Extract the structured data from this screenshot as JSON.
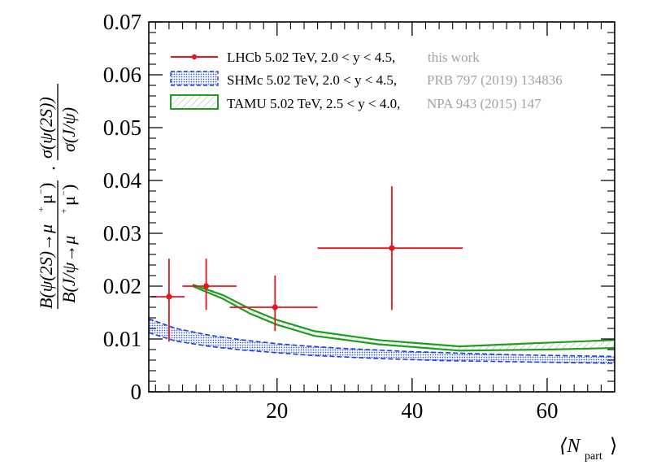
{
  "chart_data": {
    "type": "scatter",
    "title": "",
    "xlabel": "⟨N_part⟩",
    "ylabel": "B(ψ(2S)→μ⁺μ⁻)/B(J/ψ→μ⁺μ⁻) · σ(ψ(2S))/σ(J/ψ)",
    "xlim": [
      1,
      70
    ],
    "ylim": [
      0,
      0.07
    ],
    "x_ticks": [
      20,
      40,
      60
    ],
    "x_tick_labels": [
      "20",
      "40",
      "60"
    ],
    "y_ticks": [
      0,
      0.01,
      0.02,
      0.03,
      0.04,
      0.05,
      0.06,
      0.07
    ],
    "y_tick_labels": [
      "0",
      "0.01",
      "0.02",
      "0.03",
      "0.04",
      "0.05",
      "0.06",
      "0.07"
    ],
    "ylabel_parts": {
      "num_B": "B(ψ(2S)→μ",
      "den_B": "B(J/ψ→μ",
      "num_sigma": "σ(ψ(2S))",
      "den_sigma": "σ(J/ψ)",
      "dot": "·",
      "plus": "+",
      "minus": "−",
      "close": ")"
    },
    "xlabel_parts": {
      "main": "⟨N",
      "sub": "part",
      "close": "⟩"
    },
    "series": [
      {
        "name": "LHCb 5.02 TeV, 2.0 < y < 4.5,",
        "ref": "this work",
        "kind": "points",
        "color": "#e8151b",
        "points": [
          {
            "x": 4.0,
            "xerr_low": 2.7,
            "xerr_high": 2.3,
            "y": 0.018,
            "yerr_low": 0.0085,
            "yerr_high": 0.0072
          },
          {
            "x": 9.5,
            "xerr_low": 3.5,
            "xerr_high": 4.5,
            "y": 0.02,
            "yerr_low": 0.0045,
            "yerr_high": 0.0052
          },
          {
            "x": 19.7,
            "xerr_low": 6.7,
            "xerr_high": 6.3,
            "y": 0.016,
            "yerr_low": 0.0045,
            "yerr_high": 0.006
          },
          {
            "x": 37.0,
            "xerr_low": 11.0,
            "xerr_high": 10.5,
            "y": 0.0272,
            "yerr_low": 0.0117,
            "yerr_high": 0.0117
          }
        ]
      },
      {
        "name": "SHMc 5.02 TeV, 2.0 < y < 4.5,",
        "ref": "PRB 797 (2019) 134836",
        "kind": "band",
        "color": "#1f3fe0",
        "x": [
          1,
          5,
          10,
          15,
          20,
          25,
          30,
          35,
          40,
          45,
          50,
          55,
          60,
          65,
          70
        ],
        "lower": [
          0.0112,
          0.0096,
          0.0086,
          0.0079,
          0.0074,
          0.0069,
          0.0066,
          0.0063,
          0.0061,
          0.0059,
          0.0058,
          0.0057,
          0.0056,
          0.0055,
          0.0054
        ],
        "upper": [
          0.0138,
          0.012,
          0.0107,
          0.0098,
          0.0091,
          0.0086,
          0.0082,
          0.0079,
          0.0076,
          0.0074,
          0.0072,
          0.007,
          0.0069,
          0.0068,
          0.0067
        ]
      },
      {
        "name": "TAMU 5.02 TeV, 2.5 < y < 4.0,",
        "ref": "NPA 943 (2015) 147",
        "kind": "band",
        "color": "#1e9e1e",
        "x": [
          7.5,
          12,
          16,
          20,
          25.5,
          35,
          47,
          60,
          70
        ],
        "lower": [
          0.02,
          0.0176,
          0.0148,
          0.0127,
          0.0106,
          0.009,
          0.0078,
          0.008,
          0.0083
        ],
        "upper": [
          0.0203,
          0.0183,
          0.0157,
          0.0136,
          0.0115,
          0.0098,
          0.0086,
          0.0093,
          0.0098
        ]
      }
    ],
    "legend_position": "top-left"
  }
}
